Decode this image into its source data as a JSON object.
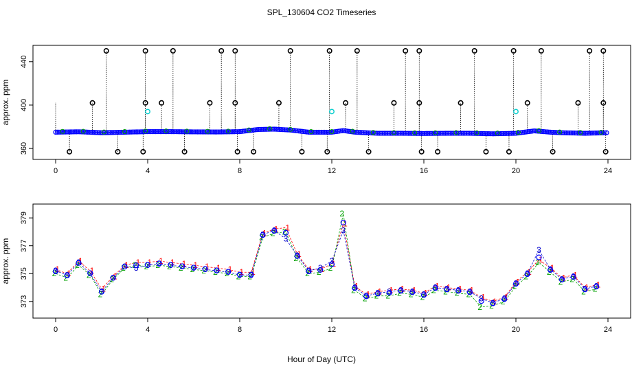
{
  "title": "SPL_130604  CO2 Timeseries",
  "xlabel": "Hour of Day (UTC)",
  "colors": {
    "flag1": "#ff0000",
    "flag2": "#00a000",
    "flag3": "#0000cc",
    "outlier": "#000000",
    "mid": "#00cccc",
    "base": "#0000ff"
  },
  "chart_data": [
    {
      "type": "scatter",
      "name": "top-panel",
      "xlabel": "",
      "ylabel": "approx. ppm",
      "xlim": [
        0,
        24
      ],
      "ylim": [
        355,
        450
      ],
      "xticks": [
        "0",
        "4",
        "8",
        "12",
        "16",
        "20",
        "24"
      ],
      "yticks": [
        "360",
        "400",
        "440"
      ],
      "ytick_values": [
        360,
        400,
        440
      ],
      "baseline": [
        [
          0,
          375
        ],
        [
          1,
          375.4
        ],
        [
          2,
          374.5
        ],
        [
          3,
          375
        ],
        [
          4,
          375.5
        ],
        [
          5,
          375.5
        ],
        [
          6,
          375.3
        ],
        [
          7,
          375.2
        ],
        [
          8,
          375.5
        ],
        [
          8.8,
          377.5
        ],
        [
          9.5,
          377.8
        ],
        [
          10.2,
          377
        ],
        [
          11,
          375
        ],
        [
          12,
          375
        ],
        [
          12.5,
          376.5
        ],
        [
          13,
          375
        ],
        [
          14,
          374
        ],
        [
          15,
          374
        ],
        [
          16,
          373.8
        ],
        [
          17,
          374
        ],
        [
          18,
          374
        ],
        [
          19,
          373.5
        ],
        [
          20,
          374
        ],
        [
          20.8,
          376.2
        ],
        [
          21.5,
          375
        ],
        [
          22,
          374.5
        ],
        [
          23,
          374
        ],
        [
          24,
          374.5
        ]
      ],
      "outliers_high": [
        2.2,
        3.9,
        5.1,
        7.2,
        7.8,
        10.2,
        11.9,
        13.1,
        15.2,
        15.8,
        18.2,
        19.9,
        21.1,
        23.2,
        23.8
      ],
      "outliers_mid": [
        1.6,
        3.9,
        4.6,
        6.7,
        7.8,
        9.7,
        12.6,
        14.7,
        15.8,
        17.6,
        20.5,
        22.7,
        23.8
      ],
      "outliers_low": [
        0.6,
        2.7,
        3.8,
        5.6,
        7.9,
        8.6,
        10.7,
        11.8,
        13.6,
        15.9,
        16.6,
        18.7,
        19.7,
        21.6,
        23.9
      ],
      "high_value": 450,
      "mid_value": 402,
      "low_value": 357,
      "cyan_points": [
        [
          4,
          394
        ],
        [
          12,
          394
        ],
        [
          20,
          394
        ]
      ]
    },
    {
      "type": "scatter",
      "name": "bottom-panel",
      "xlabel": "Hour of Day (UTC)",
      "ylabel": "approx. ppm",
      "xlim": [
        0,
        24
      ],
      "ylim": [
        372.2,
        379.6
      ],
      "xticks": [
        "0",
        "4",
        "8",
        "12",
        "16",
        "20",
        "24"
      ],
      "yticks": [
        "373",
        "375",
        "377",
        "379"
      ],
      "ytick_values": [
        373,
        375,
        377,
        379
      ],
      "series": [
        {
          "name": "1",
          "x": [
            0.0,
            0.5,
            1.0,
            1.5,
            2.0,
            2.5,
            3.0,
            3.5,
            4.0,
            4.5,
            5.0,
            5.5,
            6.0,
            6.5,
            7.0,
            7.5,
            8.0,
            8.5,
            9.0,
            9.5,
            10.0,
            10.5,
            11.0,
            11.5,
            12.0,
            12.5,
            13.0,
            13.5,
            14.0,
            14.5,
            15.0,
            15.5,
            16.0,
            16.5,
            17.0,
            17.5,
            18.0,
            18.5,
            19.0,
            19.5,
            20.0,
            20.5,
            21.0,
            21.5,
            22.0,
            22.5,
            23.0,
            23.5
          ],
          "values": [
            375.3,
            375.0,
            375.9,
            375.2,
            373.9,
            374.8,
            375.6,
            375.8,
            375.8,
            375.9,
            375.8,
            375.7,
            375.6,
            375.5,
            375.4,
            375.3,
            375.1,
            375.1,
            377.9,
            378.2,
            378.3,
            376.4,
            375.3,
            375.3,
            375.7,
            378.6,
            374.1,
            373.5,
            373.7,
            373.8,
            373.9,
            373.8,
            373.6,
            374.1,
            374.0,
            373.9,
            373.8,
            373.3,
            373.0,
            373.3,
            374.4,
            375.1,
            376.0,
            375.4,
            374.7,
            374.9,
            374.0,
            374.2
          ]
        },
        {
          "name": "2",
          "x": [
            0.0,
            0.5,
            1.0,
            1.5,
            2.0,
            2.5,
            3.0,
            3.5,
            4.0,
            4.5,
            5.0,
            5.5,
            6.0,
            6.5,
            7.0,
            7.5,
            8.0,
            8.5,
            9.0,
            9.5,
            10.0,
            10.5,
            11.0,
            11.5,
            12.0,
            12.5,
            13.0,
            13.5,
            14.0,
            14.5,
            15.0,
            15.5,
            16.0,
            16.5,
            17.0,
            17.5,
            18.0,
            18.5,
            19.0,
            19.5,
            20.0,
            20.5,
            21.0,
            21.5,
            22.0,
            22.5,
            23.0,
            23.5
          ],
          "values": [
            375.0,
            374.7,
            375.6,
            374.9,
            373.5,
            374.6,
            375.4,
            375.6,
            375.5,
            375.6,
            375.5,
            375.4,
            375.3,
            375.2,
            375.1,
            375.0,
            374.8,
            374.8,
            377.6,
            377.9,
            378.0,
            376.1,
            375.0,
            375.1,
            375.4,
            379.3,
            373.8,
            373.2,
            373.4,
            373.4,
            373.6,
            373.5,
            373.3,
            373.8,
            373.7,
            373.6,
            373.5,
            372.6,
            372.7,
            373.0,
            374.1,
            374.8,
            375.8,
            375.1,
            374.4,
            374.6,
            373.7,
            373.9
          ]
        },
        {
          "name": "3",
          "x": [
            0.0,
            0.5,
            1.0,
            1.5,
            2.0,
            2.5,
            3.0,
            3.5,
            4.0,
            4.5,
            5.0,
            5.5,
            6.0,
            6.5,
            7.0,
            7.5,
            8.0,
            8.5,
            9.0,
            9.5,
            10.0,
            10.5,
            11.0,
            11.5,
            12.0,
            12.5,
            13.0,
            13.5,
            14.0,
            14.5,
            15.0,
            15.5,
            16.0,
            16.5,
            17.0,
            17.5,
            18.0,
            18.5,
            19.0,
            19.5,
            20.0,
            20.5,
            21.0,
            21.5,
            22.0,
            22.5,
            23.0,
            23.5
          ],
          "values": [
            375.2,
            374.9,
            375.8,
            375.0,
            373.7,
            374.7,
            375.5,
            375.4,
            375.6,
            375.7,
            375.6,
            375.5,
            375.4,
            375.3,
            375.2,
            375.1,
            374.9,
            374.9,
            377.8,
            378.1,
            377.5,
            376.3,
            375.2,
            375.4,
            375.9,
            378.1,
            374.0,
            373.4,
            373.6,
            373.7,
            373.8,
            373.7,
            373.5,
            374.0,
            373.9,
            373.8,
            373.7,
            373.2,
            372.9,
            373.2,
            374.3,
            375.0,
            376.7,
            375.3,
            374.6,
            374.8,
            373.9,
            374.1
          ]
        }
      ]
    }
  ]
}
